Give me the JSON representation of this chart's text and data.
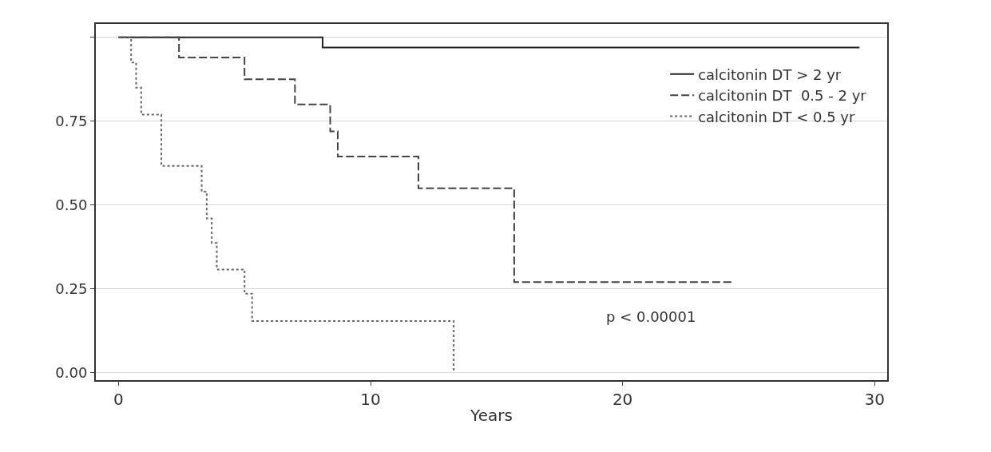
{
  "chart_data": {
    "type": "step",
    "xlabel": "Years",
    "xlim": [
      -0.9,
      30.5
    ],
    "ylim": [
      -0.022,
      1.04
    ],
    "xticks": [
      0,
      10,
      20,
      30
    ],
    "yticks": [
      {
        "value": 0,
        "label": "0.00"
      },
      {
        "value": 0.25,
        "label": "0.25"
      },
      {
        "value": 0.5,
        "label": "0.50"
      },
      {
        "value": 0.75,
        "label": "0.75"
      },
      {
        "value": 1.0,
        "label": null
      }
    ],
    "grid": "y",
    "legend": "top right",
    "marker": "none",
    "series": [
      {
        "name": "calcitonin DT > 2 yr",
        "color": "#222222",
        "line_style": "solid",
        "x": [
          0,
          8.1,
          29.4
        ],
        "values": [
          1,
          0.97,
          0.97
        ]
      },
      {
        "name": "calcitonin DT  0.5 - 2 yr",
        "color": "#444444",
        "line_style": "dashed",
        "x": [
          0,
          2.4,
          5.0,
          7.0,
          8.4,
          8.7,
          11.9,
          15.7,
          24.4
        ],
        "values": [
          1,
          0.94,
          0.875,
          0.8,
          0.72,
          0.645,
          0.55,
          0.27,
          0.27
        ]
      },
      {
        "name": "calcitonin DT < 0.5 yr",
        "color": "#666666",
        "line_style": "dotted",
        "x": [
          0,
          0.5,
          0.7,
          0.9,
          1.7,
          3.3,
          3.5,
          3.7,
          3.9,
          5.0,
          5.3,
          13.3
        ],
        "values": [
          1,
          0.925,
          0.85,
          0.77,
          0.617,
          0.54,
          0.46,
          0.387,
          0.308,
          0.236,
          0.154,
          0
        ]
      }
    ],
    "annotations": [
      "p < 0.00001"
    ]
  }
}
